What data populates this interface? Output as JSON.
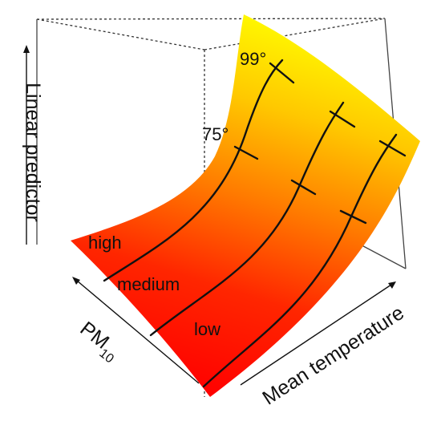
{
  "chart_data": {
    "type": "surface",
    "title": "",
    "xlabel": "Mean temperature",
    "ylabel": "PM",
    "ylabel_subscript": "10",
    "zlabel": "Linear predictor",
    "surface": {
      "colormap": [
        "#ff0000",
        "#ff8000",
        "#ffff00"
      ],
      "shape": "z increases convexly with mean temperature, rises slightly with PM10"
    },
    "series": [
      {
        "name": "high",
        "pm_level": "high",
        "tick_labels": [
          "75°",
          "99°"
        ]
      },
      {
        "name": "medium",
        "pm_level": "medium",
        "tick_labels": []
      },
      {
        "name": "low",
        "pm_level": "low",
        "tick_labels": []
      }
    ],
    "percentile_markers": [
      "75°",
      "99°"
    ],
    "box": true,
    "grid": false,
    "legend": "none"
  }
}
